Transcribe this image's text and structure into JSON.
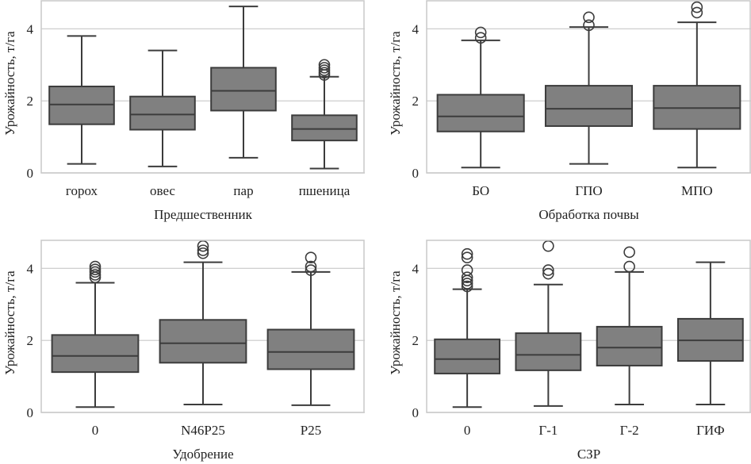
{
  "chart_data": [
    {
      "type": "box",
      "xlabel": "Предшественник",
      "ylabel": "Урожайность, т/га",
      "ylim": [
        0,
        4.8
      ],
      "yticks": [
        0,
        2,
        4
      ],
      "grid": "horizontal",
      "box_color": "#808080",
      "line_color": "#3c3c3c",
      "categories": [
        "горох",
        "овес",
        "пар",
        "пшеница"
      ],
      "stats": [
        {
          "whislo": 0.25,
          "q1": 1.35,
          "med": 1.9,
          "q3": 2.4,
          "whishi": 3.8,
          "fliers": []
        },
        {
          "whislo": 0.18,
          "q1": 1.2,
          "med": 1.62,
          "q3": 2.12,
          "whishi": 3.4,
          "fliers": []
        },
        {
          "whislo": 0.42,
          "q1": 1.73,
          "med": 2.28,
          "q3": 2.92,
          "whishi": 4.62,
          "fliers": []
        },
        {
          "whislo": 0.12,
          "q1": 0.9,
          "med": 1.22,
          "q3": 1.6,
          "whishi": 2.67,
          "fliers": [
            2.72,
            2.78,
            2.85,
            2.92,
            3.0
          ]
        }
      ]
    },
    {
      "type": "box",
      "xlabel": "Обработка почвы",
      "ylabel": "Урожайность, т/га",
      "ylim": [
        0,
        4.8
      ],
      "yticks": [
        0,
        2,
        4
      ],
      "grid": "horizontal",
      "box_color": "#808080",
      "line_color": "#3c3c3c",
      "categories": [
        "БО",
        "ГПО",
        "МПО"
      ],
      "stats": [
        {
          "whislo": 0.15,
          "q1": 1.15,
          "med": 1.57,
          "q3": 2.17,
          "whishi": 3.68,
          "fliers": [
            3.75,
            3.9
          ]
        },
        {
          "whislo": 0.25,
          "q1": 1.3,
          "med": 1.78,
          "q3": 2.42,
          "whishi": 4.05,
          "fliers": [
            4.1,
            4.32
          ]
        },
        {
          "whislo": 0.15,
          "q1": 1.22,
          "med": 1.8,
          "q3": 2.42,
          "whishi": 4.18,
          "fliers": [
            4.45,
            4.6
          ]
        }
      ]
    },
    {
      "type": "box",
      "xlabel": "Удобрение",
      "ylabel": "Урожайность, т/га",
      "ylim": [
        0,
        4.8
      ],
      "yticks": [
        0,
        2,
        4
      ],
      "grid": "horizontal",
      "box_color": "#808080",
      "line_color": "#3c3c3c",
      "categories": [
        "0",
        "N46P25",
        "P25"
      ],
      "stats": [
        {
          "whislo": 0.15,
          "q1": 1.12,
          "med": 1.57,
          "q3": 2.15,
          "whishi": 3.6,
          "fliers": [
            3.75,
            3.82,
            3.9,
            3.97,
            4.05
          ]
        },
        {
          "whislo": 0.22,
          "q1": 1.38,
          "med": 1.92,
          "q3": 2.57,
          "whishi": 4.17,
          "fliers": [
            4.42,
            4.5,
            4.62
          ]
        },
        {
          "whislo": 0.2,
          "q1": 1.2,
          "med": 1.68,
          "q3": 2.3,
          "whishi": 3.9,
          "fliers": [
            3.95,
            4.05,
            4.3
          ]
        }
      ]
    },
    {
      "type": "box",
      "xlabel": "СЗР",
      "ylabel": "Урожайность, т/га",
      "ylim": [
        0,
        4.8
      ],
      "yticks": [
        0,
        2,
        4
      ],
      "grid": "horizontal",
      "box_color": "#808080",
      "line_color": "#3c3c3c",
      "categories": [
        "0",
        "Г-1",
        "Г-2",
        "ГИФ"
      ],
      "stats": [
        {
          "whislo": 0.15,
          "q1": 1.08,
          "med": 1.48,
          "q3": 2.03,
          "whishi": 3.42,
          "fliers": [
            3.5,
            3.58,
            3.66,
            3.75,
            3.95,
            4.3,
            4.4
          ]
        },
        {
          "whislo": 0.18,
          "q1": 1.17,
          "med": 1.6,
          "q3": 2.2,
          "whishi": 3.55,
          "fliers": [
            3.85,
            3.95,
            4.62
          ]
        },
        {
          "whislo": 0.22,
          "q1": 1.3,
          "med": 1.8,
          "q3": 2.38,
          "whishi": 3.9,
          "fliers": [
            4.05,
            4.45
          ]
        },
        {
          "whislo": 0.22,
          "q1": 1.43,
          "med": 2.0,
          "q3": 2.6,
          "whishi": 4.17,
          "fliers": []
        }
      ]
    }
  ]
}
